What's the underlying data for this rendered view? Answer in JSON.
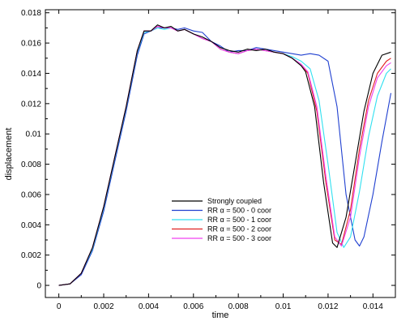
{
  "chart_data": {
    "type": "line",
    "title": "",
    "xlabel": "time",
    "ylabel": "displacement",
    "xlim": [
      -0.0006,
      0.015
    ],
    "ylim": [
      -0.0008,
      0.0182
    ],
    "xticks": [
      "0",
      "0.002",
      "0.004",
      "0.006",
      "0.008",
      "0.01",
      "0.012",
      "0.014"
    ],
    "yticks": [
      "0",
      "0.002",
      "0.004",
      "0.006",
      "0.008",
      "0.01",
      "0.012",
      "0.014",
      "0.016",
      "0.018"
    ],
    "legend_position": "lower-center",
    "grid": false,
    "series": [
      {
        "name": "Strongly coupled",
        "color": "#000000",
        "x": [
          0,
          0.0005,
          0.001,
          0.0015,
          0.002,
          0.0025,
          0.003,
          0.0035,
          0.0038,
          0.0041,
          0.0044,
          0.0047,
          0.005,
          0.0053,
          0.0056,
          0.006,
          0.0064,
          0.0068,
          0.0072,
          0.0076,
          0.008,
          0.0084,
          0.0088,
          0.0092,
          0.0096,
          0.01,
          0.0104,
          0.0108,
          0.011,
          0.0114,
          0.0118,
          0.0122,
          0.0124,
          0.0128,
          0.0132,
          0.0136,
          0.014,
          0.0144,
          0.0148
        ],
        "y": [
          0,
          0.0001,
          0.0008,
          0.0025,
          0.0052,
          0.0085,
          0.0118,
          0.0155,
          0.0168,
          0.0168,
          0.0172,
          0.017,
          0.0171,
          0.0168,
          0.0169,
          0.0166,
          0.0164,
          0.0161,
          0.0157,
          0.0155,
          0.0154,
          0.0156,
          0.0155,
          0.0156,
          0.0154,
          0.0153,
          0.015,
          0.0145,
          0.0141,
          0.0118,
          0.0068,
          0.0028,
          0.0025,
          0.0045,
          0.008,
          0.0115,
          0.014,
          0.0152,
          0.0154
        ]
      },
      {
        "name": "RR α = 500 - 0 coor",
        "color": "#2040d0",
        "x": [
          0,
          0.0005,
          0.001,
          0.0015,
          0.002,
          0.0025,
          0.003,
          0.0035,
          0.0038,
          0.0041,
          0.0044,
          0.0047,
          0.005,
          0.0053,
          0.0056,
          0.006,
          0.0064,
          0.0068,
          0.0072,
          0.0076,
          0.008,
          0.0084,
          0.0088,
          0.0092,
          0.0096,
          0.01,
          0.0104,
          0.0108,
          0.0112,
          0.0116,
          0.012,
          0.0124,
          0.0128,
          0.0132,
          0.0134,
          0.0136,
          0.014,
          0.0144,
          0.0148
        ],
        "y": [
          0,
          0.0001,
          0.0007,
          0.0023,
          0.0049,
          0.0082,
          0.0115,
          0.0152,
          0.0166,
          0.0168,
          0.017,
          0.017,
          0.017,
          0.0169,
          0.017,
          0.0168,
          0.0167,
          0.0161,
          0.0158,
          0.0154,
          0.0155,
          0.0155,
          0.0157,
          0.0156,
          0.0155,
          0.0154,
          0.0153,
          0.0152,
          0.0153,
          0.0152,
          0.0148,
          0.0118,
          0.006,
          0.003,
          0.0026,
          0.0032,
          0.006,
          0.0095,
          0.0127
        ]
      },
      {
        "name": "RR α = 500 - 1 coor",
        "color": "#30e0f0",
        "x": [
          0,
          0.0005,
          0.001,
          0.0015,
          0.002,
          0.0025,
          0.003,
          0.0035,
          0.0038,
          0.0041,
          0.0044,
          0.0047,
          0.005,
          0.0053,
          0.0056,
          0.006,
          0.0064,
          0.0068,
          0.0072,
          0.0076,
          0.008,
          0.0084,
          0.0088,
          0.0092,
          0.0096,
          0.01,
          0.0104,
          0.0108,
          0.0112,
          0.0116,
          0.012,
          0.0124,
          0.0127,
          0.013,
          0.0134,
          0.0138,
          0.0142,
          0.0146,
          0.0148
        ],
        "y": [
          0,
          0.0001,
          0.0008,
          0.0024,
          0.0051,
          0.0084,
          0.0117,
          0.0154,
          0.0167,
          0.0168,
          0.017,
          0.0169,
          0.017,
          0.0168,
          0.0169,
          0.0166,
          0.0163,
          0.0161,
          0.0156,
          0.0154,
          0.0153,
          0.0155,
          0.0156,
          0.0155,
          0.0154,
          0.0153,
          0.0151,
          0.0148,
          0.0143,
          0.0122,
          0.008,
          0.0035,
          0.0025,
          0.0032,
          0.0062,
          0.0098,
          0.0125,
          0.014,
          0.0143
        ]
      },
      {
        "name": "RR α = 500 - 2 coor",
        "color": "#e02020",
        "x": [
          0,
          0.0005,
          0.001,
          0.0015,
          0.002,
          0.0025,
          0.003,
          0.0035,
          0.0038,
          0.0041,
          0.0044,
          0.0047,
          0.005,
          0.0053,
          0.0056,
          0.006,
          0.0064,
          0.0068,
          0.0072,
          0.0076,
          0.008,
          0.0084,
          0.0088,
          0.0092,
          0.0096,
          0.01,
          0.0104,
          0.0108,
          0.0111,
          0.0115,
          0.0119,
          0.0123,
          0.0126,
          0.013,
          0.0134,
          0.0138,
          0.0142,
          0.0146,
          0.0148
        ],
        "y": [
          0,
          0.0001,
          0.0008,
          0.0025,
          0.0052,
          0.0085,
          0.0118,
          0.0155,
          0.0168,
          0.0168,
          0.0171,
          0.017,
          0.017,
          0.0168,
          0.0169,
          0.0166,
          0.0163,
          0.0161,
          0.0156,
          0.0154,
          0.0153,
          0.0155,
          0.0156,
          0.0155,
          0.0154,
          0.0153,
          0.015,
          0.0146,
          0.014,
          0.0115,
          0.0068,
          0.003,
          0.0027,
          0.005,
          0.009,
          0.0122,
          0.014,
          0.0148,
          0.015
        ]
      },
      {
        "name": "RR α = 500 - 3 coor",
        "color": "#f040f0",
        "x": [
          0,
          0.0005,
          0.001,
          0.0015,
          0.002,
          0.0025,
          0.003,
          0.0035,
          0.0038,
          0.0041,
          0.0044,
          0.0047,
          0.005,
          0.0053,
          0.0056,
          0.006,
          0.0064,
          0.0068,
          0.0072,
          0.0076,
          0.008,
          0.0084,
          0.0088,
          0.0092,
          0.0096,
          0.01,
          0.0104,
          0.0108,
          0.0111,
          0.0115,
          0.0119,
          0.0123,
          0.0126,
          0.013,
          0.0134,
          0.0138,
          0.0142,
          0.0146,
          0.0148
        ],
        "y": [
          0,
          0.0001,
          0.0008,
          0.0025,
          0.0052,
          0.0085,
          0.0118,
          0.0155,
          0.0168,
          0.0168,
          0.0171,
          0.017,
          0.017,
          0.0168,
          0.0169,
          0.0166,
          0.0163,
          0.0161,
          0.0156,
          0.0154,
          0.0153,
          0.0155,
          0.0156,
          0.0155,
          0.0154,
          0.0153,
          0.015,
          0.0146,
          0.0141,
          0.0118,
          0.0072,
          0.0032,
          0.0026,
          0.0045,
          0.0085,
          0.0118,
          0.0137,
          0.0145,
          0.0147
        ]
      }
    ]
  }
}
